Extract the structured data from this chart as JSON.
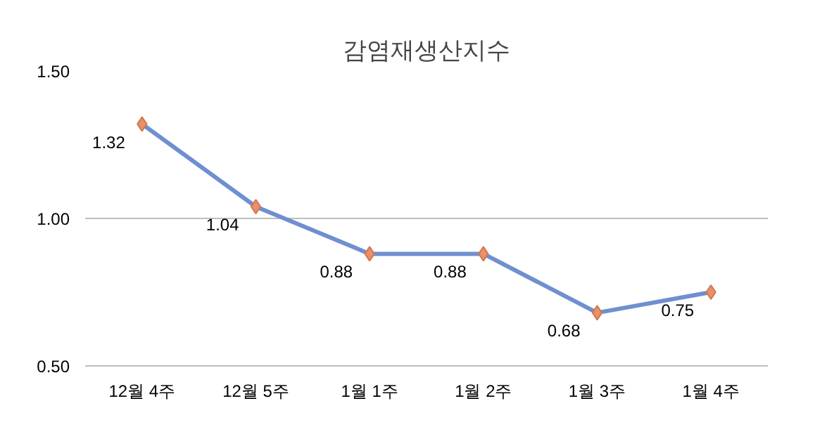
{
  "chart_data": {
    "type": "line",
    "title": "감염재생산지수",
    "categories": [
      "12월 4주",
      "12월 5주",
      "1월 1주",
      "1월 2주",
      "1월 3주",
      "1월 4주"
    ],
    "series": [
      {
        "color": "#6f8fd0",
        "values": [
          1.32,
          1.04,
          0.88,
          0.88,
          0.68,
          0.75
        ]
      }
    ],
    "marker": "diamond",
    "ylim": [
      0.5,
      1.5
    ],
    "yticks": [
      {
        "value": 0.5,
        "label": "0.50"
      },
      {
        "value": 1.0,
        "label": "1.00"
      },
      {
        "value": 1.5,
        "label": "1.50"
      }
    ],
    "grid": "y",
    "data_labels": true
  }
}
